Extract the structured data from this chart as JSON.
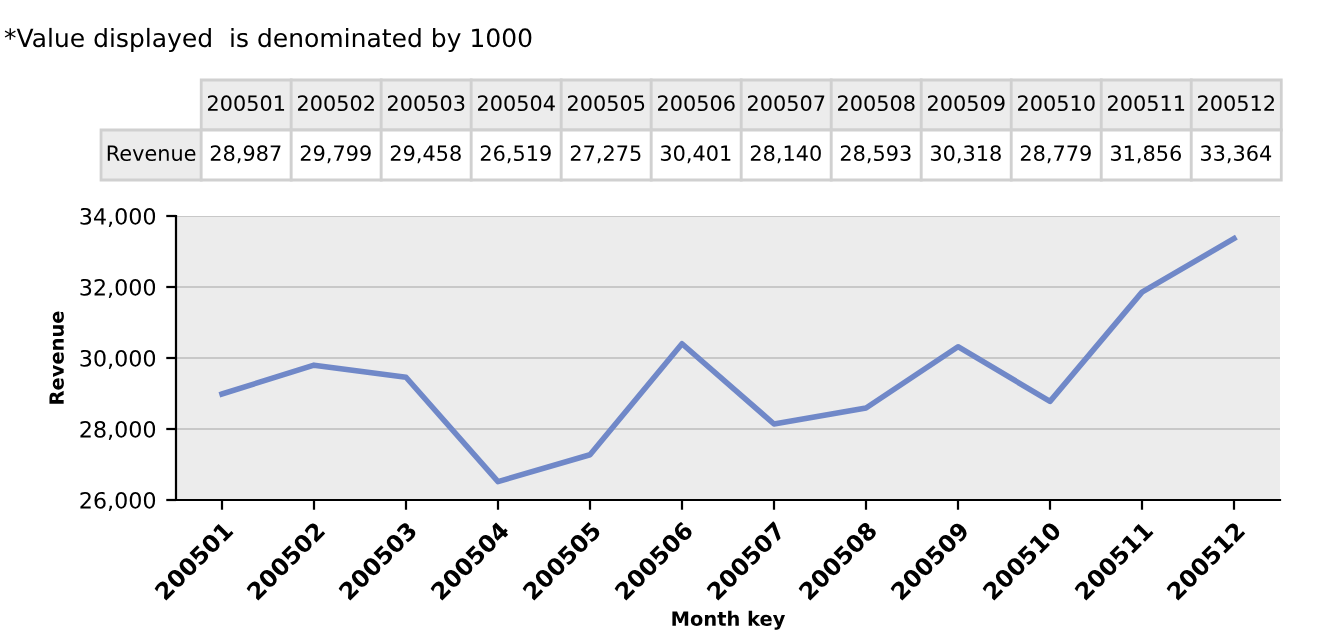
{
  "chart_data": {
    "type": "line",
    "xlabel": "Month key",
    "ylabel": "Revenue",
    "annotations": [
      "*Value displayed  is denominated by 1000"
    ],
    "categories": [
      "200501",
      "200502",
      "200503",
      "200504",
      "200505",
      "200506",
      "200507",
      "200508",
      "200509",
      "200510",
      "200511",
      "200512"
    ],
    "series": [
      {
        "name": "Revenue",
        "color": "#7088c8",
        "values": [
          28987,
          29799,
          29458,
          26519,
          27275,
          30401,
          28140,
          28593,
          30318,
          28779,
          31856,
          33364
        ],
        "value_labels": [
          "28,987",
          "29,799",
          "29,458",
          "26,519",
          "27,275",
          "30,401",
          "28,140",
          "28,593",
          "30,318",
          "28,779",
          "31,856",
          "33,364"
        ]
      }
    ],
    "ylim": [
      26000,
      34000
    ],
    "yticks": [
      {
        "value": 26000,
        "label": "26,000"
      },
      {
        "value": 28000,
        "label": "28,000"
      },
      {
        "value": 30000,
        "label": "30,000"
      },
      {
        "value": 32000,
        "label": "32,000"
      },
      {
        "value": 34000,
        "label": "34,000"
      }
    ],
    "grid": "y",
    "legend": false,
    "marker": "none",
    "line_style": "solid"
  }
}
